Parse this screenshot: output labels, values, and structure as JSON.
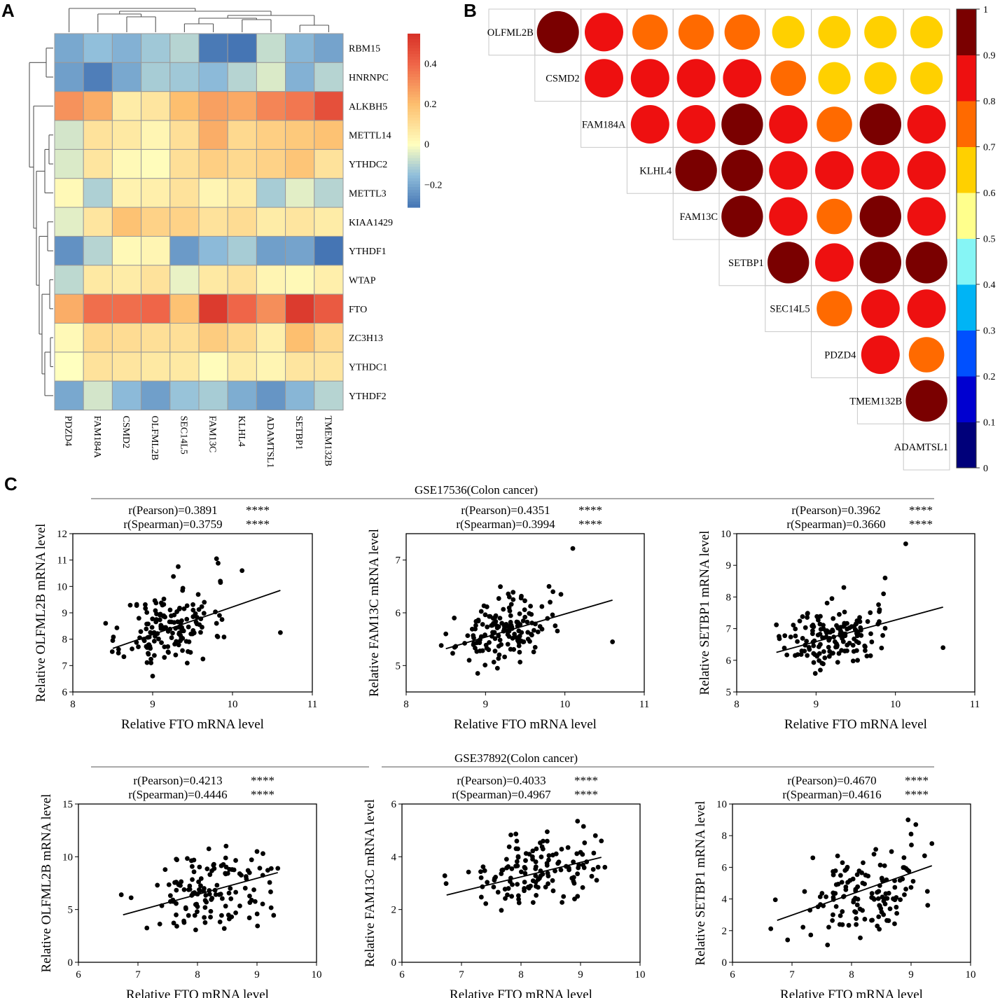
{
  "panel_letters": [
    "A",
    "B",
    "C"
  ],
  "colors": {
    "scatter_point": "#000000",
    "heatmap_border": "#9a9a9a",
    "corr_scale": [
      "#00007a",
      "#0000d0",
      "#0050ff",
      "#00b4f5",
      "#86f5f5",
      "#ffff8c",
      "#ffd000",
      "#ff6a00",
      "#ee1010",
      "#7a0000"
    ]
  },
  "chart_data": [
    {
      "id": "A",
      "type": "heatmap",
      "title": "",
      "rows": [
        "RBM15",
        "HNRNPC",
        "ALKBH5",
        "METTL14",
        "YTHDC2",
        "METTL3",
        "KIAA1429",
        "YTHDF1",
        "WTAP",
        "FTO",
        "ZC3H13",
        "YTHDC1",
        "YTHDF2"
      ],
      "columns": [
        "PDZD4",
        "FAM184A",
        "CSMD2",
        "OLFML2B",
        "SEC14L5",
        "FAM13C",
        "KLHL4",
        "ADAMTSL1",
        "SETBP1",
        "TMEM132B"
      ],
      "values": [
        [
          -0.2,
          -0.15,
          -0.18,
          -0.13,
          -0.1,
          -0.3,
          -0.32,
          -0.08,
          -0.17,
          -0.21
        ],
        [
          -0.22,
          -0.29,
          -0.2,
          -0.12,
          -0.13,
          -0.16,
          -0.1,
          -0.05,
          -0.18,
          -0.1
        ],
        [
          0.3,
          0.24,
          0.06,
          0.08,
          0.2,
          0.27,
          0.25,
          0.33,
          0.36,
          0.46
        ],
        [
          -0.06,
          0.09,
          0.07,
          0.03,
          0.1,
          0.24,
          0.12,
          0.15,
          0.17,
          0.19
        ],
        [
          -0.05,
          0.08,
          0.02,
          0.01,
          0.1,
          0.15,
          0.12,
          0.14,
          0.18,
          0.09
        ],
        [
          0.02,
          -0.11,
          0.04,
          0.05,
          0.09,
          0.03,
          0.06,
          -0.12,
          -0.04,
          -0.1
        ],
        [
          -0.04,
          0.08,
          0.19,
          0.14,
          0.14,
          0.09,
          0.11,
          0.06,
          0.08,
          0.06
        ],
        [
          -0.25,
          -0.1,
          0.02,
          0.03,
          -0.23,
          -0.16,
          -0.12,
          -0.22,
          -0.21,
          -0.33
        ],
        [
          -0.09,
          0.07,
          0.06,
          0.09,
          -0.03,
          0.07,
          0.09,
          0.03,
          0.02,
          0.05
        ],
        [
          0.24,
          0.38,
          0.38,
          0.4,
          0.19,
          0.52,
          0.4,
          0.31,
          0.52,
          0.43
        ],
        [
          0.02,
          0.12,
          0.11,
          0.1,
          0.1,
          0.16,
          0.12,
          0.05,
          0.2,
          0.12
        ],
        [
          0.0,
          0.09,
          0.08,
          0.07,
          0.07,
          0.01,
          0.06,
          0.03,
          0.08,
          0.08
        ],
        [
          -0.2,
          -0.06,
          -0.16,
          -0.22,
          -0.14,
          -0.12,
          -0.19,
          -0.24,
          -0.17,
          -0.1
        ]
      ],
      "colorbar_ticks": [
        0.4,
        0.2,
        0,
        -0.2
      ],
      "colorbar_tick_labels": [
        "0.4",
        "0.2",
        "0",
        "−0.2"
      ],
      "colorbar_range": [
        -0.31,
        0.55
      ],
      "dendrograms": [
        "rows",
        "columns"
      ]
    },
    {
      "id": "B",
      "type": "heatmap",
      "subtype": "correlation-circles-upper-triangle",
      "variables": [
        "OLFML2B",
        "CSMD2",
        "FAM184A",
        "KLHL4",
        "FAM13C",
        "SETBP1",
        "SEC14L5",
        "PDZD4",
        "TMEM132B",
        "ADAMTSL1"
      ],
      "values": [
        [
          1.0,
          0.85,
          0.75,
          0.75,
          0.75,
          0.65,
          0.65,
          0.65,
          0.65
        ],
        [
          0.85,
          0.85,
          0.85,
          0.85,
          0.75,
          0.65,
          0.65,
          0.65
        ],
        [
          0.85,
          0.85,
          0.95,
          0.85,
          0.75,
          0.95,
          0.85
        ],
        [
          0.95,
          0.95,
          0.85,
          0.85,
          0.85,
          0.85
        ],
        [
          0.95,
          0.85,
          0.75,
          0.95,
          0.85
        ],
        [
          0.95,
          0.85,
          0.95,
          0.95
        ],
        [
          0.75,
          0.85,
          0.85
        ],
        [
          0.85,
          0.75
        ],
        [
          0.95
        ]
      ],
      "colorbar_ticks": [
        1,
        0.9,
        0.8,
        0.7,
        0.6,
        0.5,
        0.4,
        0.3,
        0.2,
        0.1,
        0
      ],
      "colorbar_tick_labels": [
        "1",
        "0.9",
        "0.8",
        "0.7",
        "0.6",
        "0.5",
        "0.4",
        "0.3",
        "0.2",
        "0.1",
        "0"
      ]
    },
    {
      "id": "C-row1",
      "group_title": "GSE17536(Colon cancer)",
      "plots": [
        {
          "type": "scatter",
          "xlabel": "Relative FTO mRNA level",
          "ylabel": "Relative OLFML2B mRNA level",
          "xlim": [
            8,
            11
          ],
          "ylim": [
            6,
            12
          ],
          "xticks": [
            8,
            9,
            10,
            11
          ],
          "yticks": [
            6,
            7,
            8,
            9,
            10,
            11,
            12
          ],
          "pearson": "r(Pearson)=0.3891",
          "spearman": "r(Spearman)=0.3759",
          "stars": "****",
          "fit_x": [
            8.5,
            10.6
          ],
          "fit_y": [
            7.65,
            9.85
          ],
          "seed": 11,
          "x": [
            9.32,
            9.8,
            9.82,
            9.85,
            10.12,
            10.6,
            9.8,
            9.63,
            9.0,
            8.5
          ],
          "y": [
            10.75,
            11.05,
            10.88,
            10.15,
            10.6,
            8.25,
            8.6,
            7.25,
            6.6,
            7.95
          ],
          "n_cluster": 150,
          "cluster_x": [
            9.2,
            0.28
          ],
          "cluster_y": [
            8.5,
            0.7
          ]
        },
        {
          "type": "scatter",
          "xlabel": "Relative FTO mRNA level",
          "ylabel": "Relative FAM13C mRNA level",
          "xlim": [
            8,
            11
          ],
          "ylim": [
            4.5,
            7.5
          ],
          "xticks": [
            8,
            9,
            10,
            11
          ],
          "yticks": [
            5,
            6,
            7
          ],
          "pearson": "r(Pearson)=0.4351",
          "spearman": "r(Spearman)=0.3994",
          "stars": "****",
          "fit_x": [
            8.5,
            10.6
          ],
          "fit_y": [
            5.32,
            6.24
          ],
          "seed": 23,
          "x": [
            10.1,
            10.6,
            9.85,
            9.95,
            9.8,
            8.5,
            9.15,
            9.3
          ],
          "y": [
            7.22,
            5.45,
            6.4,
            6.35,
            6.5,
            5.6,
            4.95,
            6.3
          ],
          "n_cluster": 150,
          "cluster_x": [
            9.2,
            0.28
          ],
          "cluster_y": [
            5.65,
            0.28
          ]
        },
        {
          "type": "scatter",
          "xlabel": "Relative FTO mRNA level",
          "ylabel": "Relative SETBP1 mRNA level",
          "xlim": [
            8,
            11
          ],
          "ylim": [
            5,
            10
          ],
          "xticks": [
            8,
            9,
            10,
            11
          ],
          "yticks": [
            5,
            6,
            7,
            8,
            9,
            10
          ],
          "pearson": "r(Pearson)=0.3962",
          "spearman": "r(Spearman)=0.3660",
          "stars": "****",
          "fit_x": [
            8.5,
            10.6
          ],
          "fit_y": [
            6.25,
            7.68
          ],
          "seed": 37,
          "x": [
            10.13,
            10.6,
            9.87,
            9.85,
            9.8,
            8.5,
            9.35,
            9.2
          ],
          "y": [
            9.68,
            6.4,
            8.6,
            8.1,
            7.6,
            7.12,
            8.3,
            7.95
          ],
          "n_cluster": 150,
          "cluster_x": [
            9.2,
            0.28
          ],
          "cluster_y": [
            6.75,
            0.45
          ]
        }
      ]
    },
    {
      "id": "C-row2",
      "group_title": "GSE37892(Colon cancer)",
      "plots": [
        {
          "type": "scatter",
          "xlabel": "Relative FTO mRNA level",
          "ylabel": "Relative OLFML2B mRNA level",
          "xlim": [
            6,
            10
          ],
          "ylim": [
            0,
            15
          ],
          "xticks": [
            6,
            7,
            8,
            9,
            10
          ],
          "yticks": [
            0,
            5,
            10,
            15
          ],
          "pearson": "r(Pearson)=0.4213",
          "spearman": "r(Spearman)=0.4446",
          "stars": "****",
          "fit_x": [
            6.75,
            9.35
          ],
          "fit_y": [
            4.5,
            8.5
          ],
          "seed": 51,
          "x": [
            6.72,
            7.15,
            9.0,
            9.1,
            9.35,
            9.28,
            8.45
          ],
          "y": [
            6.4,
            3.25,
            10.5,
            10.3,
            8.9,
            4.45,
            3.2
          ],
          "n_cluster": 130,
          "cluster_x": [
            8.2,
            0.52
          ],
          "cluster_y": [
            6.6,
            1.9
          ]
        },
        {
          "type": "scatter",
          "xlabel": "Relative FTO mRNA level",
          "ylabel": "Relative FAM13C mRNA level",
          "xlim": [
            6,
            10
          ],
          "ylim": [
            0,
            6
          ],
          "xticks": [
            6,
            7,
            8,
            9,
            10
          ],
          "yticks": [
            0,
            2,
            4,
            6
          ],
          "pearson": "r(Pearson)=0.4033",
          "spearman": "r(Spearman)=0.4967",
          "stars": "****",
          "fit_x": [
            6.75,
            9.35
          ],
          "fit_y": [
            2.55,
            3.98
          ],
          "seed": 67,
          "x": [
            6.72,
            8.95,
            9.05,
            9.35,
            8.9,
            9.25,
            8.95
          ],
          "y": [
            3.28,
            5.35,
            5.15,
            4.6,
            2.4,
            4.8,
            2.5
          ],
          "n_cluster": 130,
          "cluster_x": [
            8.2,
            0.5
          ],
          "cluster_y": [
            3.35,
            0.6
          ]
        },
        {
          "type": "scatter",
          "xlabel": "Relative FTO mRNA level",
          "ylabel": "Relative SETBP1 mRNA level",
          "xlim": [
            6,
            10
          ],
          "ylim": [
            0,
            10
          ],
          "xticks": [
            6,
            7,
            8,
            9,
            10
          ],
          "yticks": [
            0,
            2,
            4,
            6,
            8,
            10
          ],
          "pearson": "r(Pearson)=0.4670",
          "spearman": "r(Spearman)=0.4616",
          "stars": "****",
          "fit_x": [
            6.75,
            9.35
          ],
          "fit_y": [
            2.65,
            6.1
          ],
          "seed": 79,
          "x": [
            6.72,
            8.95,
            9.08,
            9.35,
            9.28,
            7.35,
            9.0
          ],
          "y": [
            3.95,
            9.0,
            8.7,
            7.5,
            3.6,
            6.6,
            8.1
          ],
          "n_cluster": 130,
          "cluster_x": [
            8.2,
            0.5
          ],
          "cluster_y": [
            4.4,
            1.2
          ]
        }
      ]
    }
  ]
}
